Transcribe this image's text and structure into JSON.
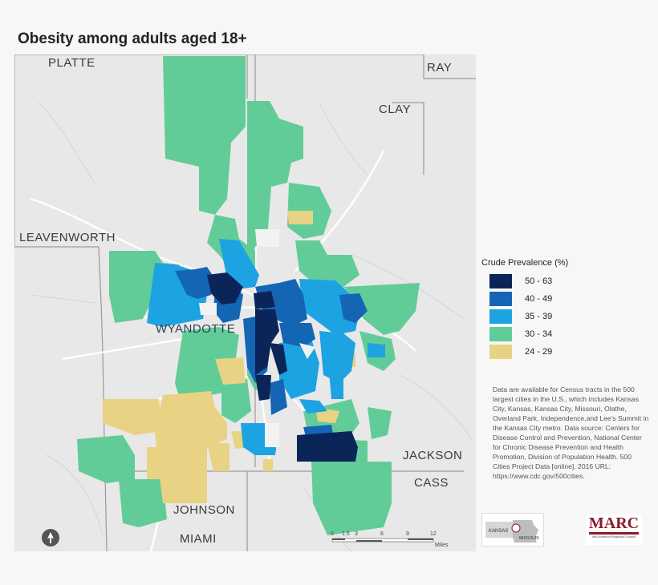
{
  "title": "Obesity among adults aged 18+",
  "counties": {
    "platte": "PLATTE",
    "ray": "RAY",
    "clay": "CLAY",
    "leavenworth": "LEAVENWORTH",
    "wyandotte": "WYANDOTTE",
    "jackson": "JACKSON",
    "cass": "CASS",
    "johnson": "JOHNSON",
    "miami": "MIAMI"
  },
  "legend": {
    "title": "Crude Prevalence (%)",
    "items": [
      {
        "label": "50 - 63",
        "color": "#0b2559"
      },
      {
        "label": "40 - 49",
        "color": "#1565b5"
      },
      {
        "label": "35 - 39",
        "color": "#1ea3e2"
      },
      {
        "label": "30 - 34",
        "color": "#62cc98"
      },
      {
        "label": "24 - 29",
        "color": "#e8d384"
      }
    ]
  },
  "note": "Data are available for Census tracts in the 500 largest cities in the U.S., which includes Kansas City, Kansas, Kansas City, Missouri, Olathe, Overland Park, Independence,and Lee's Summit in the Kansas City metro. Data source: Centers for Disease Control and Prevention, National Center for Chronic Disease Prevention and Health Promotion, Division of Population Health. 500 Cities Project Data [online]. 2016 URL: https://www.cdc.gov/500cities.",
  "scale": {
    "ticks": [
      "0",
      "1.5",
      "3",
      "6",
      "9",
      "12"
    ],
    "unit": "Miles"
  },
  "logos": {
    "kansas": "KANSAS",
    "missouri": "MISSOURI",
    "marc": "MARC",
    "marc_sub": "Mid-America Regional Council"
  }
}
